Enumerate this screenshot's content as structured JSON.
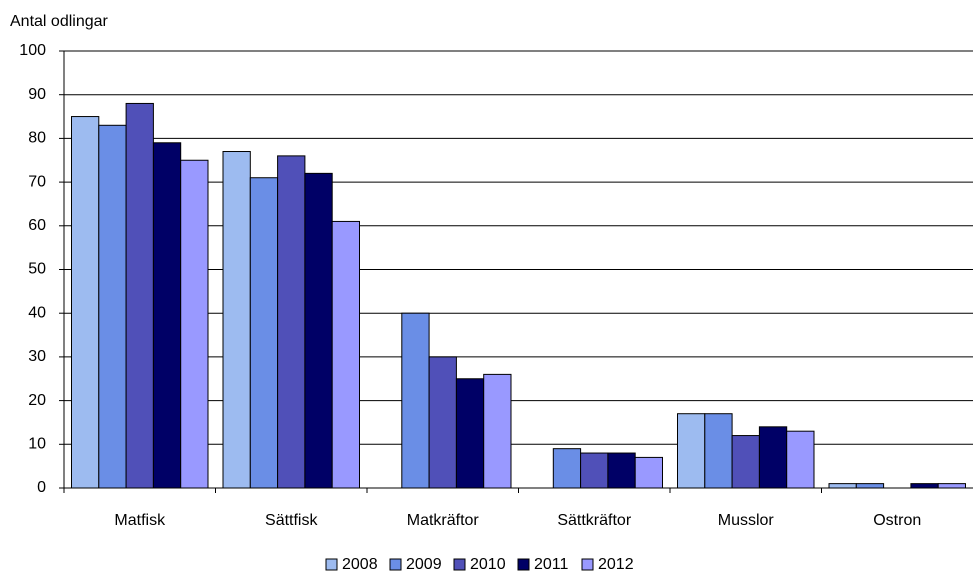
{
  "chart_data": {
    "type": "bar",
    "y_label": "Antal odlingar",
    "categories": [
      "Matfisk",
      "Sättfisk",
      "Matkräftor",
      "Sättkräftor",
      "Musslor",
      "Ostron"
    ],
    "series": [
      {
        "name": "2008",
        "color": "#9dbbf0",
        "values": [
          85,
          77,
          0,
          0,
          17,
          1
        ]
      },
      {
        "name": "2009",
        "color": "#6a8ee6",
        "values": [
          83,
          71,
          40,
          9,
          17,
          1
        ]
      },
      {
        "name": "2010",
        "color": "#5050b8",
        "values": [
          88,
          76,
          30,
          8,
          12,
          0
        ]
      },
      {
        "name": "2011",
        "color": "#000066",
        "values": [
          79,
          72,
          25,
          8,
          14,
          1
        ]
      },
      {
        "name": "2012",
        "color": "#9999ff",
        "values": [
          75,
          61,
          26,
          7,
          13,
          1
        ]
      }
    ],
    "ylim": [
      0,
      100
    ],
    "yticks": [
      0,
      10,
      20,
      30,
      40,
      50,
      60,
      70,
      80,
      90,
      100
    ],
    "grid": true,
    "legend": "bottom"
  }
}
